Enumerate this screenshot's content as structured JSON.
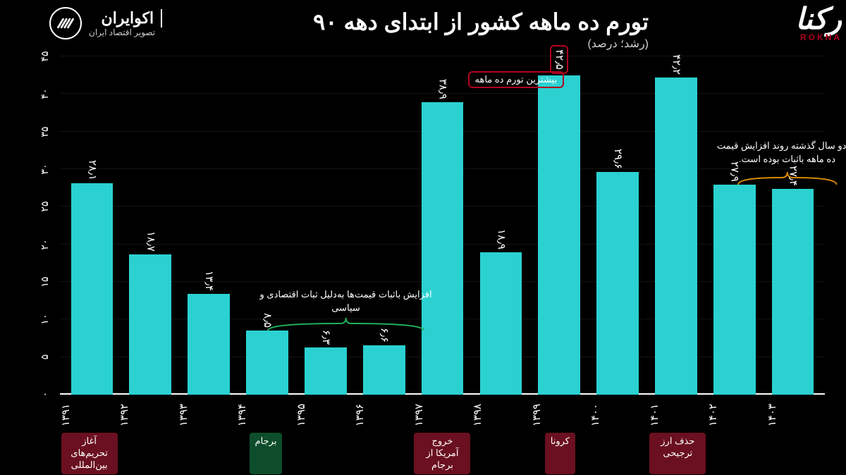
{
  "header": {
    "title": "تورم ده ماهه کشور از ابتدای دهه ۹۰",
    "subtitle": "(رشد؛ درصد)"
  },
  "brand": {
    "name": "اکوایران",
    "tagline": "تصویر اقتصاد ایران"
  },
  "watermark": {
    "fa": "رکنا",
    "en": "ROKNA"
  },
  "chart": {
    "type": "bar",
    "ylim": [
      0,
      45
    ],
    "ytick_step": 5,
    "yticks": [
      "۰",
      "۵",
      "۱۰",
      "۱۵",
      "۲۰",
      "۲۵",
      "۳۰",
      "۳۵",
      "۴۰",
      "۴۵"
    ],
    "ytick_values": [
      0,
      5,
      10,
      15,
      20,
      25,
      30,
      35,
      40,
      45
    ],
    "bar_color": "#2bd1d1",
    "bar_width_pct": 72,
    "background_color": "#000000",
    "grid_color": "rgba(255,255,255,0.08)",
    "axis_color": "#ffffff",
    "value_label_fontsize": 15,
    "xlabel_fontsize": 15,
    "bars": [
      {
        "x": "۱۳۹۱",
        "value": 28.1,
        "label": "۲۸٫۱"
      },
      {
        "x": "۱۳۹۲",
        "value": 18.7,
        "label": "۱۸٫۷"
      },
      {
        "x": "۱۳۹۳",
        "value": 13.4,
        "label": "۱۳٫۴"
      },
      {
        "x": "۱۳۹۴",
        "value": 8.5,
        "label": "۸٫۵"
      },
      {
        "x": "۱۳۹۵",
        "value": 6.3,
        "label": "۶٫۳"
      },
      {
        "x": "۱۳۹۶",
        "value": 6.6,
        "label": "۶٫۶"
      },
      {
        "x": "۱۳۹۷",
        "value": 38.9,
        "label": "۳۸٫۹"
      },
      {
        "x": "۱۳۹۸",
        "value": 18.9,
        "label": "۱۸٫۹"
      },
      {
        "x": "۱۳۹۹",
        "value": 42.5,
        "label": "۴۲٫۵",
        "highlight_color": "#b00020"
      },
      {
        "x": "۱۴۰۰",
        "value": 29.6,
        "label": "۲۹٫۶"
      },
      {
        "x": "۱۴۰۱",
        "value": 42.2,
        "label": "۴۲٫۲"
      },
      {
        "x": "۱۴۰۲",
        "value": 27.9,
        "label": "۲۷٫۹"
      },
      {
        "x": "۱۴۰۳",
        "value": 27.4,
        "label": "۲۷٫۴"
      }
    ],
    "events": [
      {
        "index": 0,
        "text": "آغاز تحریم‌های بین‌المللی",
        "bg": "#6a1020"
      },
      {
        "index": 3,
        "text": "برجام",
        "bg": "#0e4d2b"
      },
      {
        "index": 6,
        "text": "خروج آمریکا از برجام",
        "bg": "#6a1020"
      },
      {
        "index": 8,
        "text": "کرونا",
        "bg": "#6a1020"
      },
      {
        "index": 10,
        "text": "حذف ارز ترجیحی",
        "bg": "#6a1020"
      }
    ],
    "annotations": {
      "stability": {
        "text": "افزایش باثبات قیمت‌ها به‌دلیل ثبات اقتصادی و سیاسی",
        "brace_color": "#1fae5a",
        "span_indices": [
          3,
          4,
          5
        ]
      },
      "recent_trend": {
        "text": "در دو سال گذشته روند افزایش قیمت ده ماهه باثبات بوده است.",
        "brace_color": "#d68a00",
        "span_indices": [
          11,
          12
        ]
      },
      "max_callout": {
        "text": "بیشترین تورم ده ماهه",
        "border_color": "#b00020",
        "target_index": 8
      }
    }
  }
}
